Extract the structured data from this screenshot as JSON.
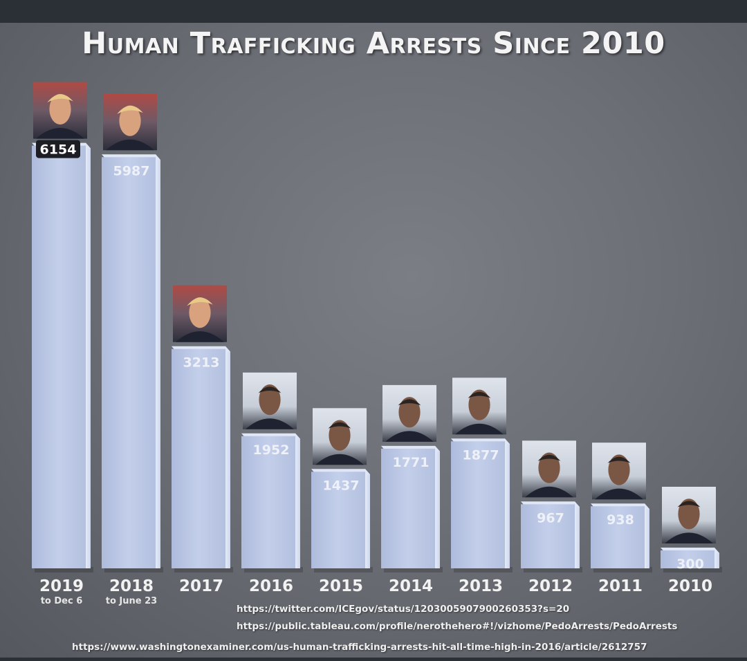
{
  "chart_data": {
    "type": "bar",
    "title": "Human Trafficking Arrests Since 2010",
    "categories": [
      "2019",
      "2018",
      "2017",
      "2016",
      "2015",
      "2014",
      "2013",
      "2012",
      "2011",
      "2010"
    ],
    "category_notes": [
      "to Dec 6",
      "to June 23",
      "",
      "",
      "",
      "",
      "",
      "",
      "",
      ""
    ],
    "values": [
      6154,
      5987,
      3213,
      1952,
      1437,
      1771,
      1877,
      967,
      938,
      300
    ],
    "value_labels": [
      "6154",
      "5987",
      "3213",
      "1952",
      "1437",
      "1771",
      "1877",
      "967",
      "938",
      "300"
    ],
    "bar_portraits": [
      "portrait-1",
      "portrait-1",
      "portrait-1",
      "portrait-2",
      "portrait-2",
      "portrait-2",
      "portrait-2",
      "portrait-2",
      "portrait-2",
      "portrait-2"
    ],
    "bar_color": "#b9c6e6",
    "ylim": [
      0,
      6400
    ],
    "grid": false
  },
  "sources": [
    "https://twitter.com/ICEgov/status/1203005907900260353?s=20",
    "https://public.tableau.com/profile/nerothehero#!/vizhome/PedoArrests/PedoArrests",
    "https://www.washingtonexaminer.com/us-human-trafficking-arrests-hit-all-time-high-in-2016/article/2612757"
  ]
}
